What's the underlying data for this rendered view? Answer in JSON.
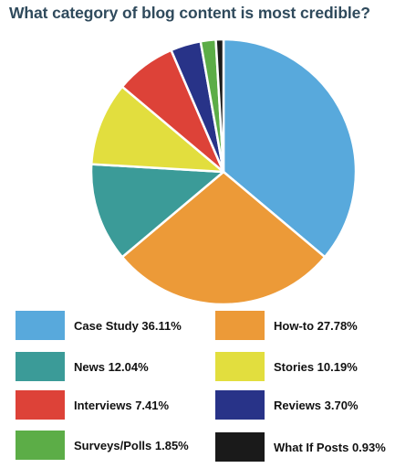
{
  "chart_data": {
    "type": "pie",
    "title": "What category of blog content is most credible?",
    "slices": [
      {
        "label": "Case Study",
        "value": 36.11,
        "value_text": "36.11%",
        "color": "#58a9dc"
      },
      {
        "label": "How-to",
        "value": 27.78,
        "value_text": "27.78%",
        "color": "#ec9a38"
      },
      {
        "label": "News",
        "value": 12.04,
        "value_text": "12.04%",
        "color": "#3b9b98"
      },
      {
        "label": "Stories",
        "value": 10.19,
        "value_text": "10.19%",
        "color": "#e2de3e"
      },
      {
        "label": "Interviews",
        "value": 7.41,
        "value_text": "7.41%",
        "color": "#dd4238"
      },
      {
        "label": "Reviews",
        "value": 3.7,
        "value_text": "3.70%",
        "color": "#283388"
      },
      {
        "label": "Surveys/Polls",
        "value": 1.85,
        "value_text": "1.85%",
        "color": "#5cad47"
      },
      {
        "label": "What If Posts",
        "value": 0.93,
        "value_text": "0.93%",
        "color": "#1a1a1a"
      }
    ],
    "legend_placement": "bottom",
    "legend": [
      {
        "text": "Case Study 36.11%",
        "color": "#58a9dc"
      },
      {
        "text": "How-to 27.78%",
        "color": "#ec9a38"
      },
      {
        "text": "News 12.04%",
        "color": "#3b9b98"
      },
      {
        "text": "Stories 10.19%",
        "color": "#e2de3e"
      },
      {
        "text": "Interviews 7.41%",
        "color": "#dd4238"
      },
      {
        "text": "Reviews 3.70%",
        "color": "#283388"
      },
      {
        "text": "Surveys/Polls 1.85%",
        "color": "#5cad47"
      },
      {
        "text": "What If Posts 0.93%",
        "color": "#1a1a1a"
      }
    ]
  }
}
